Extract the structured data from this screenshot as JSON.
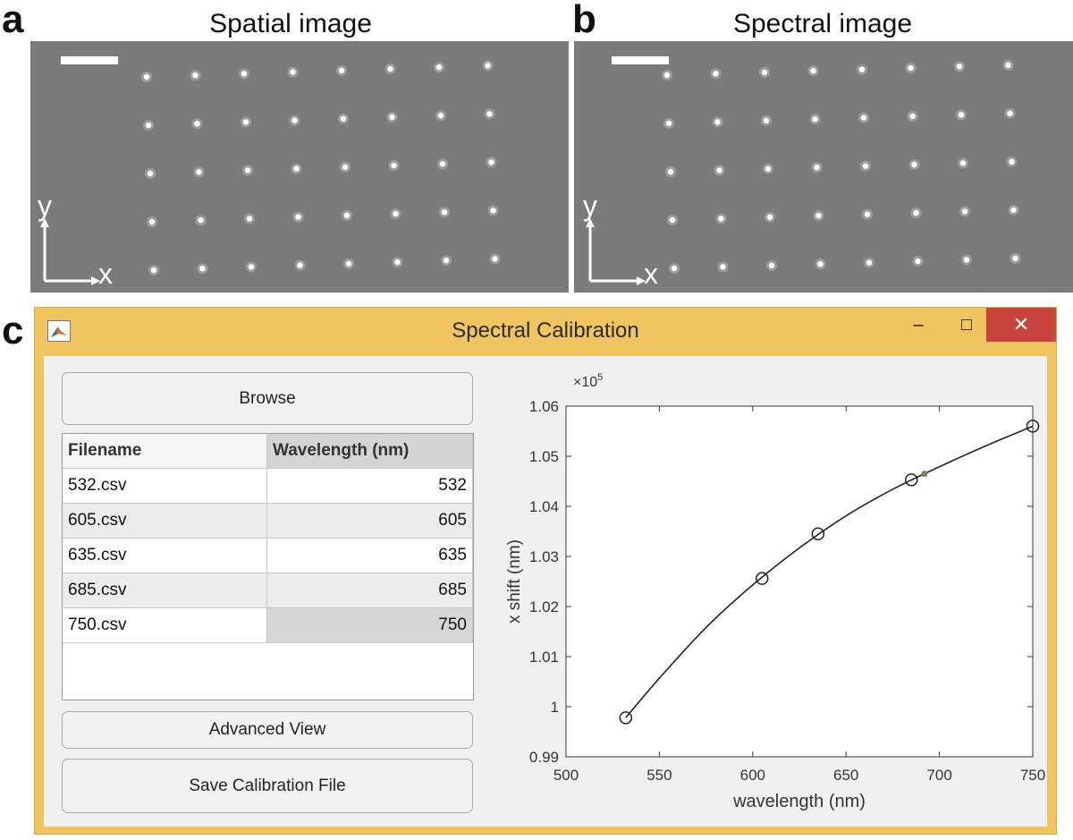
{
  "panels": {
    "a": {
      "letter": "a",
      "title": "Spatial image",
      "axis_x": "x",
      "axis_y": "y"
    },
    "b": {
      "letter": "b",
      "title": "Spectral image",
      "axis_x": "x",
      "axis_y": "y"
    },
    "c": {
      "letter": "c"
    }
  },
  "window": {
    "title": "Spectral Calibration",
    "minimize_glyph": "–",
    "maximize_glyph": "□",
    "close_glyph": "✕",
    "close_color": "#c9443c",
    "frame_color": "#f0c45f"
  },
  "buttons": {
    "browse": "Browse",
    "advanced": "Advanced View",
    "save": "Save Calibration File"
  },
  "table": {
    "headers": [
      "Filename",
      "Wavelength (nm)"
    ],
    "rows": [
      {
        "file": "532.csv",
        "wl": "532"
      },
      {
        "file": "605.csv",
        "wl": "605"
      },
      {
        "file": "635.csv",
        "wl": "635"
      },
      {
        "file": "685.csv",
        "wl": "685"
      },
      {
        "file": "750.csv",
        "wl": "750"
      }
    ]
  },
  "chart_data": {
    "type": "scatter",
    "xlabel": "wavelength (nm)",
    "ylabel": "x shift (nm)",
    "y_exponent_label": "×10",
    "y_exponent_power": "5",
    "xlim": [
      500,
      750
    ],
    "ylim": [
      0.99,
      1.06
    ],
    "x_ticks": [
      "500",
      "550",
      "600",
      "650",
      "700",
      "750"
    ],
    "y_ticks": [
      "0.99",
      "1",
      "1.01",
      "1.02",
      "1.03",
      "1.04",
      "1.05",
      "1.06"
    ],
    "points": [
      {
        "x": 532,
        "y": 0.9978
      },
      {
        "x": 605,
        "y": 1.0256
      },
      {
        "x": 635,
        "y": 1.0345
      },
      {
        "x": 685,
        "y": 1.0453
      },
      {
        "x": 750,
        "y": 1.056
      }
    ],
    "fit_curve": [
      {
        "x": 532,
        "y": 0.9978
      },
      {
        "x": 550,
        "y": 1.0057
      },
      {
        "x": 575,
        "y": 1.0158
      },
      {
        "x": 600,
        "y": 1.0243
      },
      {
        "x": 625,
        "y": 1.0317
      },
      {
        "x": 650,
        "y": 1.0381
      },
      {
        "x": 675,
        "y": 1.0434
      },
      {
        "x": 700,
        "y": 1.0479
      },
      {
        "x": 725,
        "y": 1.0521
      },
      {
        "x": 750,
        "y": 1.056
      }
    ],
    "marker_point": {
      "x": 692,
      "y": 1.0465
    },
    "marker_color": "#6b8e4e"
  }
}
